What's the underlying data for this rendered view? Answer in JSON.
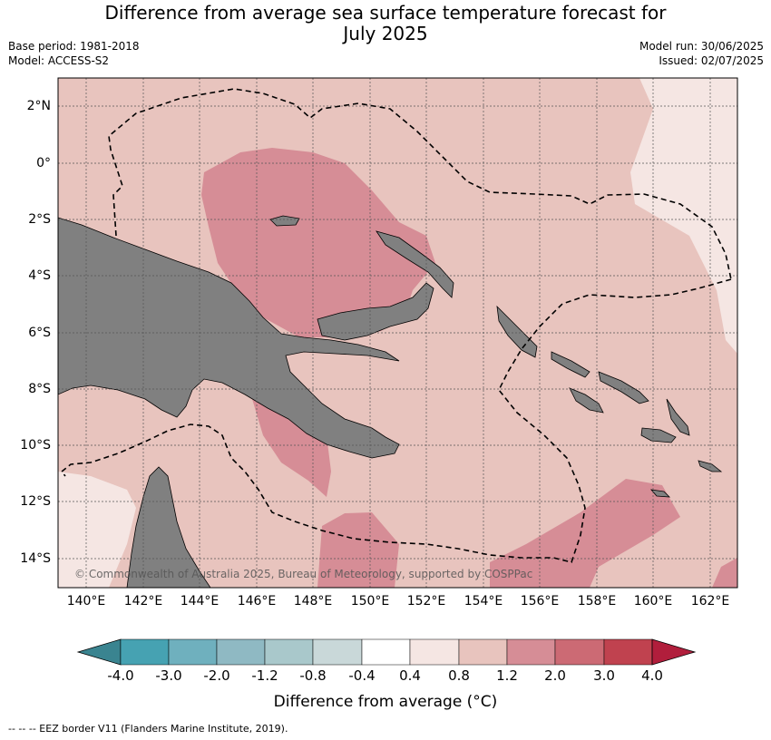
{
  "title_line1": "Difference from average sea surface temperature forecast for",
  "title_line2": "July 2025",
  "base_period": "Base period: 1981-2018",
  "model": "Model: ACCESS-S2",
  "model_run": "Model run: 30/06/2025",
  "issued": "Issued: 02/07/2025",
  "copyright": "© Commonwealth of Australia 2025, Bureau of Meteorology, supported by COSPPac",
  "lat_labels": [
    "2°N",
    "0°",
    "2°S",
    "4°S",
    "6°S",
    "8°S",
    "10°S",
    "12°S",
    "14°S"
  ],
  "lon_labels": [
    "140°E",
    "142°E",
    "144°E",
    "146°E",
    "148°E",
    "150°E",
    "152°E",
    "154°E",
    "156°E",
    "158°E",
    "160°E",
    "162°E"
  ],
  "colorbar": {
    "title": "Difference from average (°C)",
    "labels": [
      "-4.0",
      "-3.0",
      "-2.0",
      "-1.2",
      "-0.8",
      "-0.4",
      "0.4",
      "0.8",
      "1.2",
      "2.0",
      "3.0",
      "4.0"
    ],
    "colors": [
      "#3a8490",
      "#46a2b2",
      "#6fb0be",
      "#8fb9c3",
      "#a9c8cb",
      "#c9d8d9",
      "#ffffff",
      "#f5e6e3",
      "#e8c4be",
      "#d68d96",
      "#cc6a74",
      "#c0424f",
      "#b11e3c"
    ]
  },
  "footnote": "--  --  -- EEZ border V11 (Flanders Marine Institute, 2019)."
}
